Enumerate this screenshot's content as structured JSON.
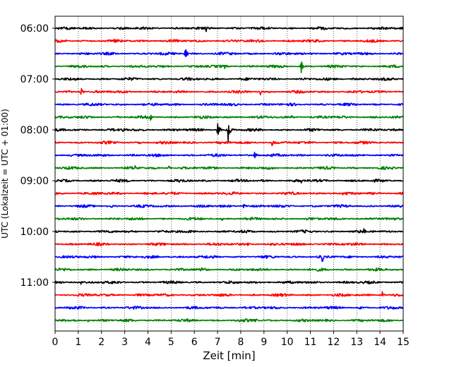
{
  "chart_data": {
    "type": "line",
    "title": "",
    "xlabel": "Zeit  [min]",
    "ylabel": "UTC (Lokalzeit = UTC + 01:00)",
    "xlim": [
      0,
      15
    ],
    "x_ticks": [
      "0",
      "1",
      "2",
      "3",
      "4",
      "5",
      "6",
      "7",
      "8",
      "9",
      "10",
      "11",
      "12",
      "13",
      "14",
      "15"
    ],
    "y_tick_labels": [
      "06:00",
      "07:00",
      "08:00",
      "09:00",
      "10:00",
      "11:00"
    ],
    "grid": "vertical dotted",
    "trace_colors": [
      "#000000",
      "#ff0000",
      "#0000ff",
      "#008000"
    ],
    "rows": [
      {
        "start": "06:00",
        "color": "#000000",
        "events": [
          {
            "t": 6.5,
            "amp": 7
          }
        ]
      },
      {
        "start": "06:15",
        "color": "#ff0000",
        "events": []
      },
      {
        "start": "06:30",
        "color": "#0000ff",
        "events": [
          {
            "t": 5.6,
            "amp": 11
          }
        ]
      },
      {
        "start": "06:45",
        "color": "#008000",
        "events": [
          {
            "t": 10.6,
            "amp": 11
          },
          {
            "t": 7.3,
            "amp": 3
          }
        ]
      },
      {
        "start": "07:00",
        "color": "#000000",
        "events": [
          {
            "t": 12.8,
            "amp": 3
          }
        ]
      },
      {
        "start": "07:15",
        "color": "#ff0000",
        "events": [
          {
            "t": 1.1,
            "amp": 9
          },
          {
            "t": 8.8,
            "amp": 9
          }
        ]
      },
      {
        "start": "07:30",
        "color": "#0000ff",
        "events": [
          {
            "t": 3.8,
            "amp": 3
          }
        ]
      },
      {
        "start": "07:45",
        "color": "#008000",
        "events": [
          {
            "t": 4.1,
            "amp": 4
          },
          {
            "t": 10.2,
            "amp": 3
          }
        ]
      },
      {
        "start": "08:00",
        "color": "#000000",
        "events": [
          {
            "t": 7.0,
            "amp": 15
          },
          {
            "t": 7.45,
            "amp": 22
          },
          {
            "t": 2.9,
            "amp": 4
          }
        ]
      },
      {
        "start": "08:15",
        "color": "#ff0000",
        "events": [
          {
            "t": 9.35,
            "amp": 7
          },
          {
            "t": 3.6,
            "amp": 3
          }
        ]
      },
      {
        "start": "08:30",
        "color": "#0000ff",
        "events": [
          {
            "t": 8.6,
            "amp": 8
          }
        ]
      },
      {
        "start": "08:45",
        "color": "#008000",
        "events": [
          {
            "t": 3.4,
            "amp": 4
          },
          {
            "t": 4.9,
            "amp": 3
          }
        ]
      },
      {
        "start": "09:00",
        "color": "#000000",
        "events": [
          {
            "t": 10.6,
            "amp": 3
          }
        ]
      },
      {
        "start": "09:15",
        "color": "#ff0000",
        "events": [
          {
            "t": 12.4,
            "amp": 3
          }
        ]
      },
      {
        "start": "09:30",
        "color": "#0000ff",
        "events": [
          {
            "t": 8.1,
            "amp": 4
          },
          {
            "t": 2.4,
            "amp": 3
          }
        ]
      },
      {
        "start": "09:45",
        "color": "#008000",
        "events": [
          {
            "t": 7.2,
            "amp": 3
          }
        ]
      },
      {
        "start": "10:00",
        "color": "#000000",
        "events": [
          {
            "t": 13.3,
            "amp": 4
          }
        ]
      },
      {
        "start": "10:15",
        "color": "#ff0000",
        "events": [
          {
            "t": 8.3,
            "amp": 3
          }
        ]
      },
      {
        "start": "10:30",
        "color": "#0000ff",
        "events": [
          {
            "t": 11.5,
            "amp": 9
          },
          {
            "t": 5.1,
            "amp": 3
          }
        ]
      },
      {
        "start": "10:45",
        "color": "#008000",
        "events": [
          {
            "t": 6.3,
            "amp": 3
          }
        ]
      },
      {
        "start": "11:00",
        "color": "#000000",
        "events": [
          {
            "t": 1.1,
            "amp": 3
          }
        ]
      },
      {
        "start": "11:15",
        "color": "#ff0000",
        "events": [
          {
            "t": 14.1,
            "amp": 5
          }
        ]
      },
      {
        "start": "11:30",
        "color": "#0000ff",
        "events": [
          {
            "t": 13.1,
            "amp": 3
          }
        ]
      },
      {
        "start": "11:45",
        "color": "#008000",
        "events": [
          {
            "t": 1.4,
            "amp": 3
          },
          {
            "t": 8.6,
            "amp": 3
          }
        ]
      }
    ]
  }
}
